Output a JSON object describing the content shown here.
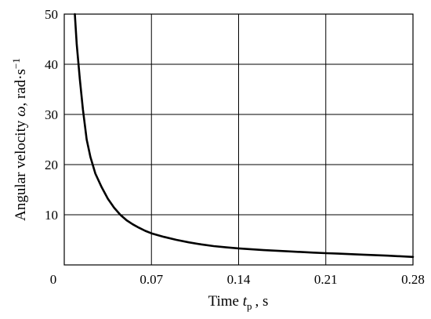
{
  "chart_data": {
    "type": "line",
    "title": "",
    "xlabel": {
      "prefix": "Time",
      "symbol": "t",
      "subscript": "p",
      "unit": ", s"
    },
    "ylabel": {
      "prefix": "Angular velocity",
      "symbol": "ω",
      "unit": ", rad·s",
      "superscript": "−1"
    },
    "xlim": [
      0,
      0.28
    ],
    "ylim": [
      0,
      50
    ],
    "x_ticks": [
      "0",
      "0.07",
      "0.14",
      "0.21",
      "0.28"
    ],
    "y_ticks": [
      "10",
      "20",
      "30",
      "40",
      "50"
    ],
    "grid": true,
    "legend": "none",
    "series": [
      {
        "x": [
          0.0085,
          0.01,
          0.0125,
          0.015,
          0.018,
          0.021,
          0.025,
          0.03,
          0.035,
          0.04,
          0.045,
          0.05,
          0.055,
          0.06,
          0.065,
          0.07,
          0.08,
          0.09,
          0.1,
          0.11,
          0.12,
          0.13,
          0.14,
          0.16,
          0.18,
          0.2,
          0.21,
          0.22,
          0.24,
          0.26,
          0.28
        ],
        "y": [
          50,
          44,
          37,
          31,
          25,
          21.5,
          18.2,
          15.5,
          13.2,
          11.4,
          10.0,
          8.9,
          8.1,
          7.4,
          6.8,
          6.3,
          5.6,
          5.0,
          4.5,
          4.1,
          3.75,
          3.5,
          3.3,
          2.95,
          2.7,
          2.45,
          2.35,
          2.25,
          2.05,
          1.85,
          1.6
        ]
      }
    ]
  }
}
